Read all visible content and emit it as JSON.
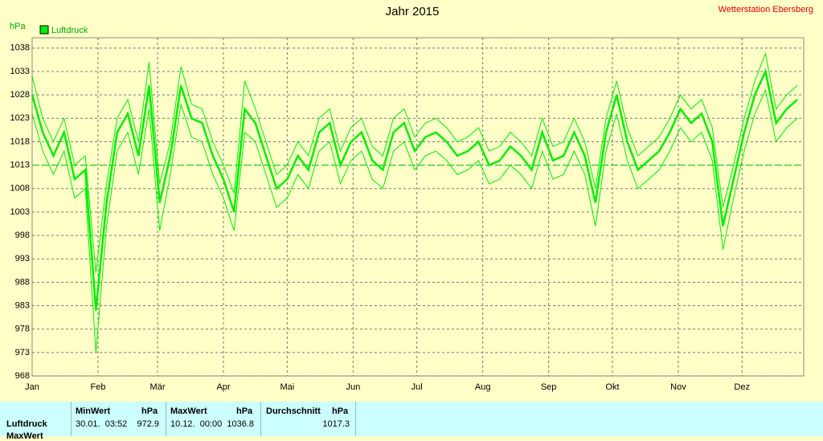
{
  "chart_data": {
    "type": "line",
    "title": "Jahr 2015",
    "station": "Wetterstation Ebersberg",
    "y_label": "hPa",
    "x": [
      0,
      5,
      10,
      15,
      20,
      25,
      30,
      35,
      40,
      45,
      50,
      55,
      60,
      65,
      70,
      75,
      80,
      85,
      90,
      95,
      100,
      105,
      110,
      115,
      120,
      125,
      130,
      135,
      140,
      145,
      150,
      155,
      160,
      165,
      170,
      175,
      180,
      185,
      190,
      195,
      200,
      205,
      210,
      215,
      220,
      225,
      230,
      235,
      240,
      245,
      250,
      255,
      260,
      265,
      270,
      275,
      280,
      285,
      290,
      295,
      300,
      305,
      310,
      315,
      320,
      325,
      330,
      335,
      340,
      345,
      350,
      355,
      360
    ],
    "xlim": [
      0,
      363
    ],
    "xticks": [
      {
        "value": 0,
        "label": "Jan"
      },
      {
        "value": 31,
        "label": "Feb"
      },
      {
        "value": 59,
        "label": "Mär"
      },
      {
        "value": 90,
        "label": "Apr"
      },
      {
        "value": 120,
        "label": "Mai"
      },
      {
        "value": 151,
        "label": "Jun"
      },
      {
        "value": 181,
        "label": "Jul"
      },
      {
        "value": 212,
        "label": "Aug"
      },
      {
        "value": 243,
        "label": "Sep"
      },
      {
        "value": 273,
        "label": "Okt"
      },
      {
        "value": 304,
        "label": "Nov"
      },
      {
        "value": 334,
        "label": "Dez"
      }
    ],
    "ylim": [
      968,
      1040.2
    ],
    "yticks": [
      968,
      973,
      978,
      983,
      988,
      993,
      998,
      1003,
      1008,
      1013,
      1018,
      1023,
      1028,
      1033,
      1038
    ],
    "grid": true,
    "reference_line": 1013,
    "series": [
      {
        "name": "Luftdruck",
        "color": "#00ee00",
        "values": [
          1028,
          1020,
          1015,
          1020,
          1010,
          1012,
          982,
          1005,
          1020,
          1024,
          1015,
          1030,
          1005,
          1015,
          1030,
          1023,
          1022,
          1015,
          1010,
          1003,
          1025,
          1022,
          1015,
          1008,
          1010,
          1015,
          1012,
          1020,
          1022,
          1013,
          1018,
          1020,
          1014,
          1012,
          1020,
          1022,
          1016,
          1019,
          1020,
          1018,
          1015,
          1016,
          1018,
          1013,
          1014,
          1017,
          1015,
          1012,
          1020,
          1014,
          1015,
          1020,
          1015,
          1005,
          1020,
          1028,
          1018,
          1012,
          1014,
          1016,
          1020,
          1025,
          1022,
          1024,
          1018,
          1000,
          1010,
          1020,
          1028,
          1033,
          1022,
          1025,
          1027
        ],
        "max": [
          1032,
          1023,
          1018,
          1023,
          1013,
          1015,
          990,
          1009,
          1023,
          1027,
          1018,
          1035,
          1009,
          1018,
          1034,
          1026,
          1025,
          1018,
          1013,
          1007,
          1031,
          1025,
          1018,
          1011,
          1013,
          1018,
          1015,
          1023,
          1025,
          1016,
          1021,
          1023,
          1017,
          1015,
          1023,
          1025,
          1019,
          1022,
          1023,
          1021,
          1018,
          1019,
          1021,
          1016,
          1017,
          1020,
          1018,
          1015,
          1023,
          1017,
          1018,
          1023,
          1018,
          1008,
          1023,
          1031,
          1021,
          1015,
          1017,
          1019,
          1023,
          1028,
          1025,
          1027,
          1021,
          1004,
          1013,
          1023,
          1031,
          1036.8,
          1025,
          1028,
          1030
        ],
        "min": [
          1024,
          1016,
          1011,
          1016,
          1006,
          1008,
          973,
          1000,
          1016,
          1020,
          1011,
          1025,
          999,
          1011,
          1026,
          1019,
          1018,
          1011,
          1006,
          999,
          1020,
          1018,
          1011,
          1004,
          1006,
          1011,
          1008,
          1016,
          1018,
          1009,
          1014,
          1016,
          1010,
          1008,
          1016,
          1018,
          1012,
          1015,
          1016,
          1014,
          1011,
          1012,
          1014,
          1009,
          1010,
          1013,
          1011,
          1008,
          1016,
          1010,
          1011,
          1016,
          1011,
          1000,
          1016,
          1024,
          1014,
          1008,
          1010,
          1012,
          1016,
          1021,
          1018,
          1020,
          1014,
          995,
          1006,
          1016,
          1024,
          1029,
          1018,
          1021,
          1023
        ]
      }
    ]
  },
  "table": {
    "headers": [
      [
        "MinWert",
        "hPa"
      ],
      [
        "MaxWert",
        "hPa"
      ],
      [
        "Durchschnitt",
        "hPa"
      ]
    ],
    "rows": [
      [
        "Luftdruck",
        "30.01.  03:52",
        "972.9",
        "10.12.  00:00",
        "1036.8",
        "1017.3"
      ],
      [
        "MaxWert"
      ]
    ]
  }
}
